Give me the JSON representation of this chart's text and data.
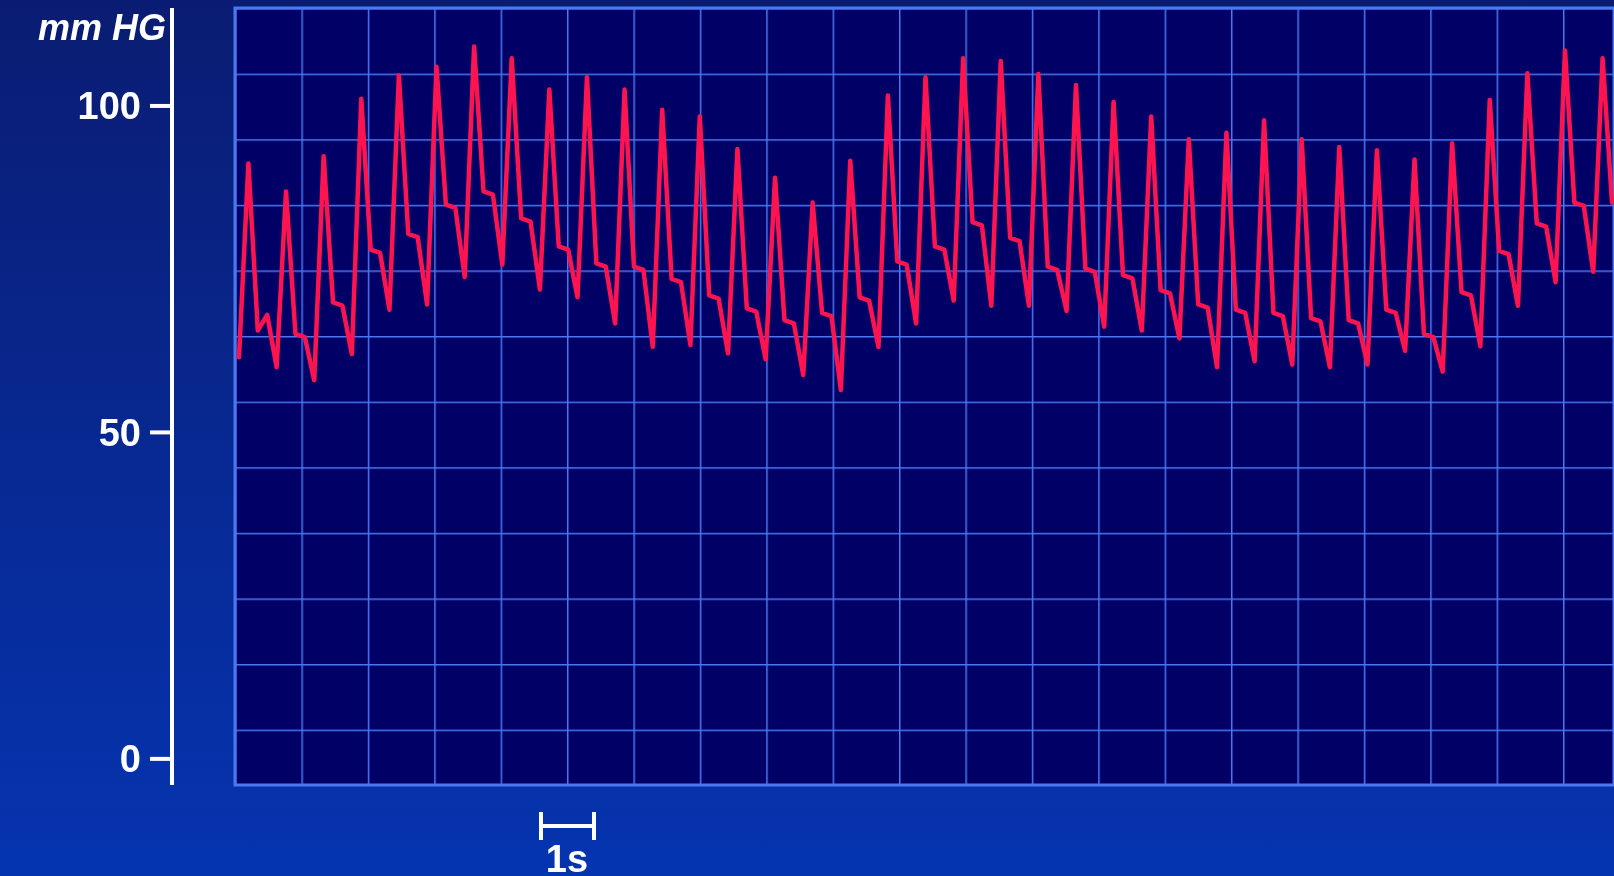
{
  "chart_data": {
    "type": "line",
    "ylabel": "mm HG",
    "annotations": [
      "1s"
    ],
    "tick_labels": "y",
    "categories": [
      null,
      null,
      null,
      null,
      null,
      null,
      null,
      null,
      null,
      null,
      null,
      null,
      null,
      null,
      null,
      null,
      null,
      null,
      null,
      null,
      null,
      null,
      null,
      null,
      null,
      null,
      null,
      null,
      null,
      null,
      null,
      null,
      null,
      null,
      null,
      null,
      null,
      null,
      null,
      null,
      null,
      null,
      null,
      null,
      null,
      null,
      null,
      null,
      null,
      null,
      null,
      null,
      null,
      null,
      null,
      null,
      null,
      null,
      null,
      null,
      null,
      null,
      null,
      null,
      null,
      null,
      null,
      null,
      null,
      null,
      null,
      null,
      null,
      null,
      null,
      null,
      null,
      null,
      null,
      null,
      null,
      null,
      null,
      null,
      null,
      null,
      null,
      null,
      null,
      null,
      null,
      null,
      null,
      null,
      null,
      null,
      null,
      null,
      null,
      null,
      null,
      null,
      null,
      null,
      null,
      null,
      null,
      null,
      null,
      null,
      null,
      null,
      null,
      null,
      null,
      null,
      null,
      null,
      null,
      null,
      null,
      null,
      null,
      null,
      null,
      null,
      null,
      null,
      null,
      null,
      null,
      null,
      null,
      null,
      null,
      null,
      null,
      null,
      null,
      null,
      null,
      null,
      null,
      null,
      null,
      null,
      null
    ],
    "ylim": [
      -4,
      115
    ],
    "yticks": [
      0,
      50,
      100
    ],
    "series": [
      {
        "color": "#ff1450",
        "values": [
          61.5,
          91.2,
          65.6,
          68,
          60,
          86.9,
          65.1,
          64.6,
          58,
          92.3,
          69.9,
          69.4,
          62,
          101.1,
          78,
          77.5,
          68.8,
          104.7,
          80.4,
          79.9,
          69.6,
          106,
          84.9,
          84.4,
          73.8,
          109.1,
          86.9,
          86.4,
          75.7,
          107.3,
          82.8,
          82.3,
          71.9,
          102.5,
          78.5,
          78,
          70.7,
          104.4,
          75.9,
          75.4,
          66.7,
          102.5,
          75.4,
          74.9,
          63.1,
          99.4,
          73.5,
          73,
          63.4,
          98.4,
          71,
          70.5,
          62.1,
          93.4,
          69,
          68.5,
          61.2,
          89,
          67.2,
          66.7,
          58.8,
          85.2,
          68.3,
          67.8,
          56.5,
          91.6,
          70.7,
          70.2,
          63.1,
          101.6,
          76.2,
          75.7,
          66.7,
          104.4,
          78.5,
          78,
          70.2,
          107.3,
          82.2,
          81.7,
          69.4,
          106.9,
          79.8,
          79.3,
          69.4,
          104.9,
          75.4,
          74.9,
          68.6,
          103.2,
          75.1,
          74.6,
          66.2,
          100.6,
          74.1,
          73.6,
          65.6,
          98.4,
          71.8,
          71.3,
          64.4,
          94.9,
          69.6,
          69.1,
          60,
          95.9,
          68.8,
          68.3,
          60.9,
          97.8,
          68.3,
          67.8,
          60.4,
          94.9,
          67.5,
          67,
          60,
          93.7,
          67.2,
          66.7,
          60.4,
          93.2,
          68.8,
          68.3,
          62.5,
          91.8,
          65.1,
          64.6,
          59.3,
          94.3,
          71.5,
          71,
          63.2,
          100.9,
          77.8,
          77.3,
          69.4,
          105,
          82,
          81.5,
          73,
          108.5,
          85.2,
          84.7,
          74.6,
          107.3,
          85.2
        ]
      }
    ]
  }
}
